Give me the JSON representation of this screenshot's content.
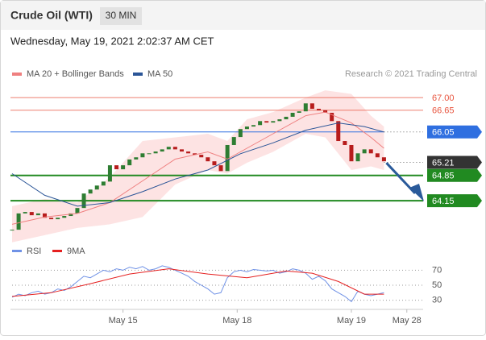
{
  "header": {
    "title": "Crude Oil (WTI)",
    "interval": "30 MIN",
    "date": "Wednesday, May 19, 2021 2:02:37 AM CET"
  },
  "chart_data": [
    {
      "type": "candlestick",
      "attribution": "Research © 2021 Trading Central",
      "values": [
        63.35,
        63.8,
        63.84,
        63.75,
        63.8,
        63.68,
        63.64,
        63.68,
        63.73,
        63.8,
        63.95,
        64.35,
        64.46,
        64.57,
        64.68,
        65.13,
        65.02,
        65.13,
        65.29,
        65.35,
        65.46,
        65.46,
        65.51,
        65.57,
        65.64,
        65.57,
        65.51,
        65.46,
        65.42,
        65.35,
        65.24,
        65.13,
        64.97,
        65.69,
        65.91,
        66.13,
        66.2,
        66.24,
        66.35,
        66.31,
        66.35,
        66.4,
        66.47,
        66.58,
        66.62,
        66.84,
        66.69,
        66.65,
        66.58,
        66.35,
        65.8,
        65.69,
        65.24,
        65.46,
        65.57,
        65.46,
        65.35,
        65.24
      ],
      "up_color": "#2e7d32",
      "down_color": "#b71c1c",
      "series": [
        {
          "name": "MA 20 + Bollinger Bands",
          "color": "#ef8080",
          "x": [
            0,
            5,
            10,
            15,
            20,
            25,
            30,
            33,
            36,
            40,
            45,
            48,
            52,
            55,
            57
          ],
          "values": [
            63.5,
            63.7,
            63.8,
            64.1,
            64.7,
            65.3,
            65.5,
            65.3,
            65.6,
            66.0,
            66.5,
            66.6,
            66.3,
            65.9,
            65.6
          ],
          "band_upper": [
            64.0,
            64.2,
            64.1,
            64.8,
            65.8,
            65.9,
            66.0,
            65.8,
            66.4,
            66.6,
            67.0,
            67.2,
            67.1,
            66.5,
            66.2
          ],
          "band_lower": [
            63.0,
            63.2,
            63.4,
            63.5,
            63.7,
            64.6,
            65.0,
            64.9,
            65.2,
            65.5,
            66.0,
            65.9,
            65.0,
            65.1,
            65.0
          ],
          "band_color": "#fcdcdc"
        },
        {
          "name": "MA 50",
          "color": "#2b5597",
          "x": [
            0,
            5,
            10,
            15,
            20,
            25,
            30,
            35,
            40,
            45,
            50,
            54,
            57
          ],
          "values": [
            64.9,
            64.3,
            64.0,
            64.1,
            64.4,
            64.75,
            65.0,
            65.45,
            65.75,
            66.1,
            66.3,
            66.2,
            66.05
          ]
        }
      ],
      "levels": [
        {
          "value": 67,
          "label": "67.00",
          "color": "#e8553f",
          "boxed": false
        },
        {
          "value": 66.65,
          "label": "66.65",
          "color": "#e8553f",
          "boxed": false
        },
        {
          "value": 66.05,
          "label": "66.05",
          "color": "#2f6fe0",
          "boxed": true
        },
        {
          "value": 65.21,
          "label": "65.21",
          "color": "#333333",
          "boxed": true,
          "dotted": true
        },
        {
          "value": 64.85,
          "label": "64.85",
          "color": "#218a21",
          "boxed": true
        },
        {
          "value": 64.15,
          "label": "64.15",
          "color": "#218a21",
          "boxed": true
        }
      ],
      "xlim": [
        0,
        63
      ],
      "ylim": [
        63.13,
        67.47
      ],
      "xticks": [
        {
          "value": 17,
          "label": "May 15"
        },
        {
          "value": 34.5,
          "label": "May 18"
        },
        {
          "value": 52,
          "label": "May 19"
        },
        {
          "value": 60.5,
          "label": "May 28"
        }
      ]
    },
    {
      "type": "line",
      "series": [
        {
          "name": "RSI",
          "color": "#7092e6",
          "x": [
            0,
            1,
            2,
            3,
            4,
            5,
            6,
            7,
            8,
            9,
            10,
            11,
            12,
            13,
            14,
            15,
            16,
            17,
            18,
            19,
            20,
            21,
            22,
            23,
            24,
            25,
            26,
            27,
            28,
            29,
            30,
            31,
            32,
            33,
            34,
            35,
            36,
            37,
            38,
            39,
            40,
            41,
            42,
            43,
            44,
            45,
            46,
            47,
            48,
            49,
            50,
            51,
            52,
            53,
            54,
            55,
            56,
            57
          ],
          "values": [
            34,
            38,
            36,
            40,
            42,
            38,
            40,
            45,
            43,
            48,
            55,
            62,
            60,
            65,
            70,
            68,
            72,
            70,
            74,
            72,
            75,
            70,
            72,
            76,
            74,
            70,
            66,
            62,
            55,
            50,
            45,
            38,
            40,
            60,
            68,
            70,
            68,
            71,
            70,
            69,
            70,
            66,
            68,
            72,
            70,
            66,
            58,
            62,
            56,
            45,
            40,
            35,
            28,
            42,
            38,
            36,
            38,
            40
          ]
        },
        {
          "name": "9MA",
          "color": "#e52020",
          "x": [
            0,
            6,
            12,
            18,
            24,
            30,
            36,
            42,
            46,
            50,
            54,
            57
          ],
          "values": [
            35,
            40,
            52,
            65,
            72,
            65,
            60,
            69,
            66,
            55,
            38,
            38
          ]
        }
      ],
      "xlim": [
        0,
        63
      ],
      "ylim": [
        22,
        92
      ],
      "yticks": [
        70,
        50,
        30
      ]
    }
  ]
}
